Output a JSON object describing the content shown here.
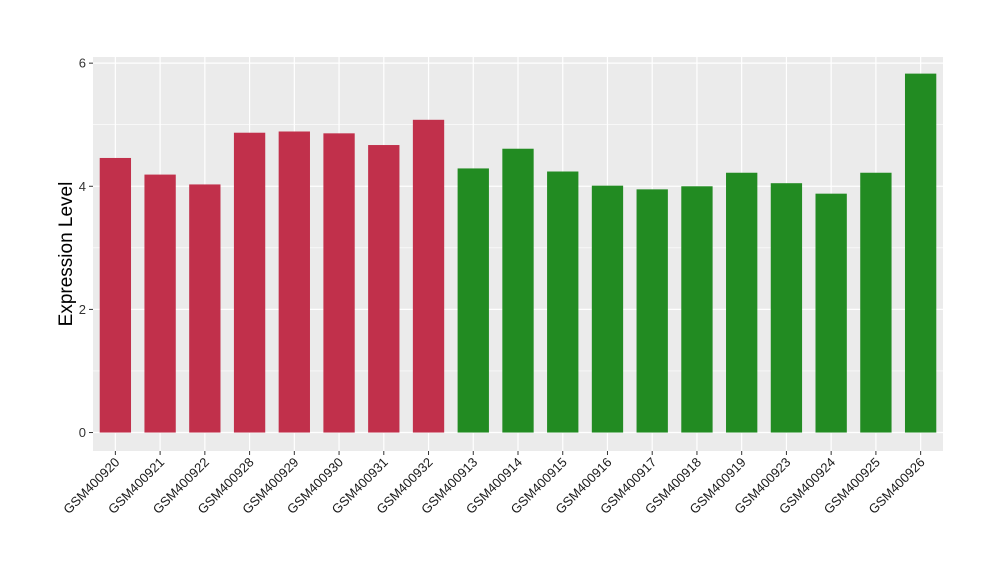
{
  "chart_data": {
    "type": "bar",
    "title": "",
    "xlabel": "",
    "ylabel": "Expression Level",
    "ylim": [
      -0.3,
      6.1
    ],
    "yticks": [
      0,
      2,
      4,
      6
    ],
    "grid": true,
    "categories": [
      "GSM400920",
      "GSM400921",
      "GSM400922",
      "GSM400928",
      "GSM400929",
      "GSM400930",
      "GSM400931",
      "GSM400932",
      "GSM400913",
      "GSM400914",
      "GSM400915",
      "GSM400916",
      "GSM400917",
      "GSM400918",
      "GSM400919",
      "GSM400923",
      "GSM400924",
      "GSM400925",
      "GSM400926"
    ],
    "values": [
      4.46,
      4.19,
      4.03,
      4.87,
      4.89,
      4.86,
      4.67,
      5.08,
      4.29,
      4.61,
      4.24,
      4.01,
      3.95,
      4.0,
      4.22,
      4.05,
      3.88,
      4.22,
      5.83
    ],
    "colors": [
      "#C1304B",
      "#C1304B",
      "#C1304B",
      "#C1304B",
      "#C1304B",
      "#C1304B",
      "#C1304B",
      "#C1304B",
      "#228B22",
      "#228B22",
      "#228B22",
      "#228B22",
      "#228B22",
      "#228B22",
      "#228B22",
      "#228B22",
      "#228B22",
      "#228B22",
      "#228B22"
    ],
    "panel_background": "#EBEBEB",
    "grid_color": "#FFFFFF"
  }
}
